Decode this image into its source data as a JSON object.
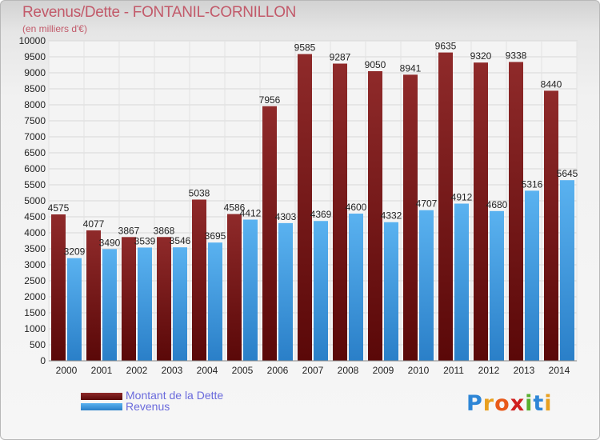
{
  "title": "Revenus/Dette - FONTANIL-CORNILLON",
  "subtitle": "(en milliers d'€)",
  "colors": {
    "dette": "#7a1818",
    "revenus": "#4aa3e6",
    "text": "#222222",
    "title": "#c25a6a",
    "legend": "#6a6adc"
  },
  "chart_data": {
    "type": "bar",
    "categories": [
      "2000",
      "2001",
      "2002",
      "2003",
      "2004",
      "2005",
      "2006",
      "2007",
      "2008",
      "2009",
      "2010",
      "2011",
      "2012",
      "2013",
      "2014"
    ],
    "series": [
      {
        "name": "Montant de la Dette",
        "values": [
          4575,
          4077,
          3867,
          3868,
          5038,
          4586,
          7956,
          9585,
          9287,
          9050,
          8941,
          9635,
          9320,
          9338,
          8440
        ]
      },
      {
        "name": "Revenus",
        "values": [
          3209,
          3490,
          3539,
          3546,
          3695,
          4412,
          4303,
          4369,
          4600,
          4332,
          4707,
          4912,
          4680,
          5316,
          5645
        ]
      }
    ],
    "ylim": [
      0,
      10000
    ],
    "yticks": [
      0,
      500,
      1000,
      1500,
      2000,
      2500,
      3000,
      3500,
      4000,
      4500,
      5000,
      5500,
      6000,
      6500,
      7000,
      7500,
      8000,
      8500,
      9000,
      9500,
      10000
    ],
    "grid": true,
    "legend_position": "bottom-left"
  },
  "legend": [
    {
      "label": "Montant de la Dette",
      "color": "#7a1818"
    },
    {
      "label": "Revenus",
      "color": "#4aa3e6"
    }
  ],
  "logo": {
    "text": "Proxiti",
    "letters": [
      "P",
      "r",
      "o",
      "x",
      "i",
      "t",
      "i"
    ],
    "colors": [
      "#2e86d6",
      "#e8a020",
      "#e85a1a",
      "#d02020",
      "#5ab030",
      "#2e86d6",
      "#e8a020"
    ]
  }
}
